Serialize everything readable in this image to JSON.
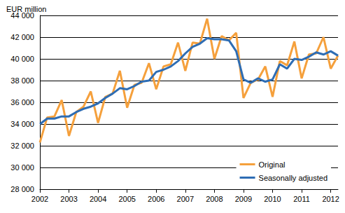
{
  "chart_data": {
    "type": "line",
    "ylabel": "EUR million",
    "categories": [
      "2002",
      null,
      null,
      null,
      "2003",
      null,
      null,
      null,
      "2004",
      null,
      null,
      null,
      "2005",
      null,
      null,
      null,
      "2006",
      null,
      null,
      null,
      "2007",
      null,
      null,
      null,
      "2008",
      null,
      null,
      null,
      "2009",
      null,
      null,
      null,
      "2010",
      null,
      null,
      null,
      "2011",
      null,
      null,
      null,
      "2012",
      null
    ],
    "series": [
      {
        "name": "Original",
        "color": "#f5a03c",
        "values": [
          32300,
          34600,
          34700,
          36200,
          32900,
          35100,
          35600,
          37000,
          34100,
          36500,
          36800,
          38900,
          35500,
          37600,
          37800,
          39600,
          37200,
          39300,
          39500,
          41500,
          38900,
          41500,
          41400,
          43700,
          40000,
          42100,
          41700,
          42400,
          36400,
          37800,
          38100,
          39300,
          36500,
          39800,
          39400,
          41600,
          38200,
          40400,
          40500,
          42000,
          39100,
          40300
        ]
      },
      {
        "name": "Seasonally adjusted",
        "color": "#2e6db4",
        "values": [
          34000,
          34500,
          34500,
          34700,
          34700,
          35100,
          35400,
          35600,
          35900,
          36400,
          36800,
          37300,
          37200,
          37500,
          37900,
          38000,
          38800,
          39000,
          39300,
          39800,
          40500,
          41100,
          41400,
          41900,
          41800,
          41800,
          41700,
          40700,
          38100,
          37800,
          38200,
          37900,
          38100,
          39500,
          39100,
          40000,
          39900,
          40200,
          40600,
          40400,
          40700,
          40300
        ]
      }
    ],
    "ylim": [
      28000,
      44000
    ],
    "yticks": [
      {
        "value": 28000,
        "label": "28 000"
      },
      {
        "value": 30000,
        "label": "30 000"
      },
      {
        "value": 32000,
        "label": "32 000"
      },
      {
        "value": 34000,
        "label": "34 000"
      },
      {
        "value": 36000,
        "label": "36 000"
      },
      {
        "value": 38000,
        "label": "38 000"
      },
      {
        "value": 40000,
        "label": "40 000"
      },
      {
        "value": 42000,
        "label": "42 000"
      },
      {
        "value": 44000,
        "label": "44 000"
      }
    ],
    "grid": true,
    "legend": "lower right"
  }
}
